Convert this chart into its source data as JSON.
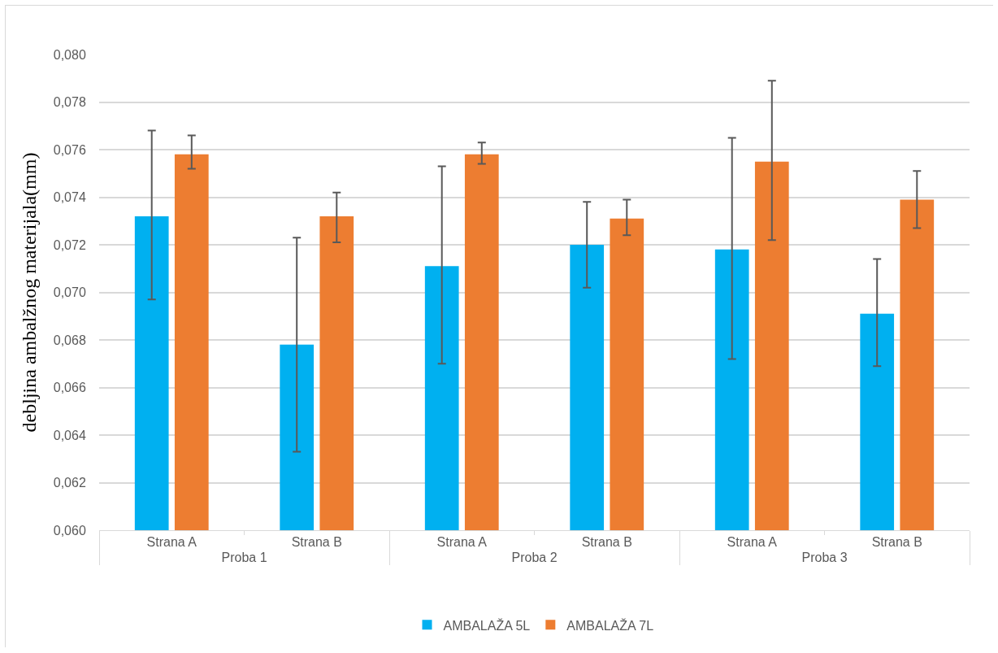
{
  "chart_data": {
    "type": "bar",
    "ylabel": "debljina ambalžnog materijala(mm)",
    "categories": [
      "Strana A",
      "Strana B",
      "Strana A",
      "Strana B",
      "Strana A",
      "Strana B"
    ],
    "annotations": [
      "Proba 1",
      "Proba 2",
      "Proba 3"
    ],
    "series": [
      {
        "name": "AMBALAŽA 5L",
        "color": "#00b0f0",
        "values": [
          0.0732,
          0.0678,
          0.0711,
          0.072,
          0.0718,
          0.0691
        ],
        "errors": [
          [
            0.0697,
            0.0768
          ],
          [
            0.0633,
            0.0723
          ],
          [
            0.067,
            0.0753
          ],
          [
            0.0702,
            0.0738
          ],
          [
            0.0672,
            0.0765
          ],
          [
            0.0669,
            0.0714
          ]
        ]
      },
      {
        "name": "AMBALAŽA 7L",
        "color": "#ed7d31",
        "values": [
          0.0758,
          0.0732,
          0.0758,
          0.0731,
          0.0755,
          0.0739
        ],
        "errors": [
          [
            0.0752,
            0.0766
          ],
          [
            0.0721,
            0.0742
          ],
          [
            0.0754,
            0.0763
          ],
          [
            0.0724,
            0.0739
          ],
          [
            0.0722,
            0.0789
          ],
          [
            0.0727,
            0.0751
          ]
        ]
      }
    ],
    "ylim": [
      0.06,
      0.08
    ],
    "yticks": [
      {
        "value": 0.06,
        "label": "0,060"
      },
      {
        "value": 0.062,
        "label": "0,062"
      },
      {
        "value": 0.064,
        "label": "0,064"
      },
      {
        "value": 0.066,
        "label": "0,066"
      },
      {
        "value": 0.068,
        "label": "0,068"
      },
      {
        "value": 0.07,
        "label": "0,070"
      },
      {
        "value": 0.072,
        "label": "0,072"
      },
      {
        "value": 0.074,
        "label": "0,074"
      },
      {
        "value": 0.076,
        "label": "0,076"
      },
      {
        "value": 0.078,
        "label": "0,078"
      },
      {
        "value": 0.08,
        "label": "0,080"
      }
    ],
    "grid": "y",
    "legend": "bottom"
  }
}
